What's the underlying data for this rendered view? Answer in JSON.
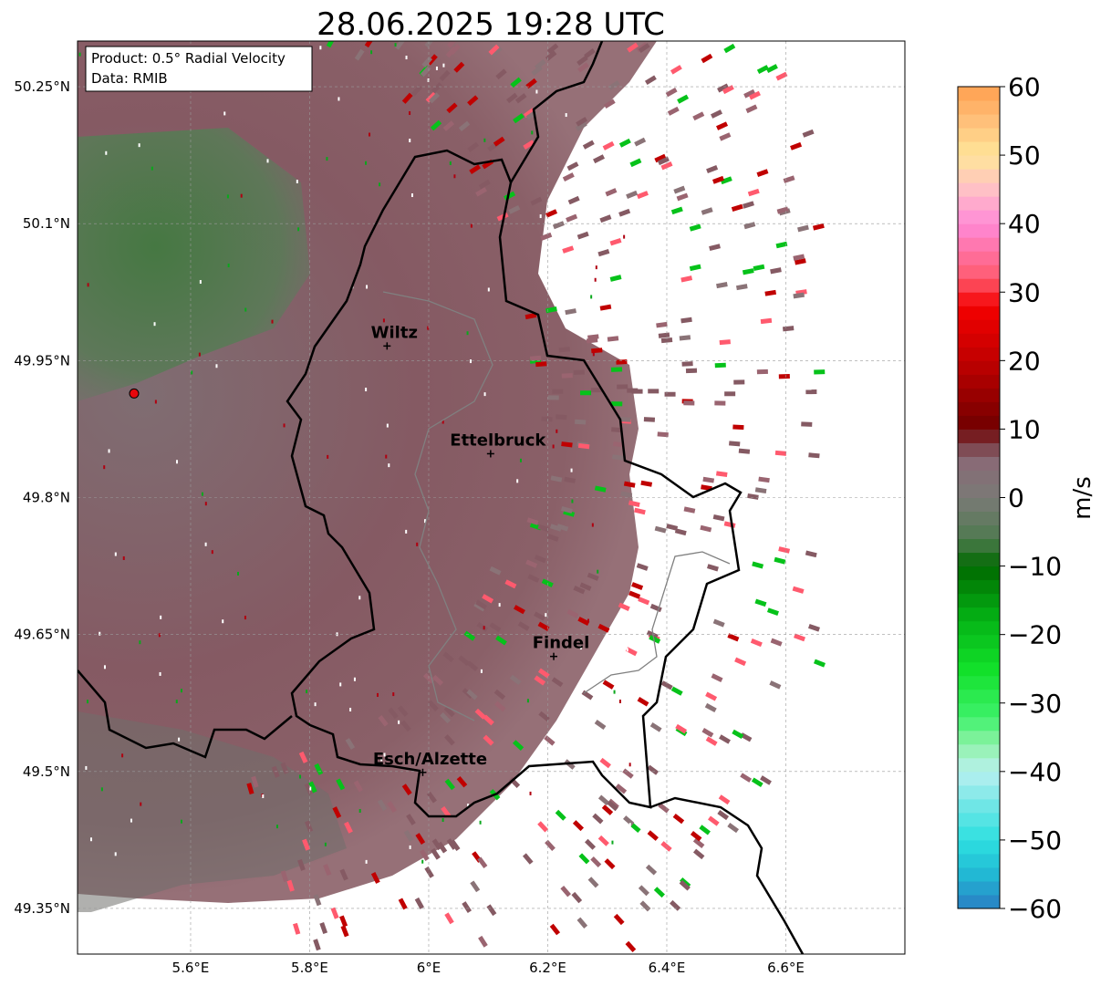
{
  "title": "28.06.2025 19:28 UTC",
  "info_box": {
    "product": "Product: 0.5° Radial Velocity",
    "data": "Data: RMIB"
  },
  "map": {
    "lon_range": [
      5.41,
      6.8
    ],
    "lat_range": [
      49.3,
      50.3
    ],
    "x_ticks": [
      {
        "value": 5.6,
        "label": "5.6°E"
      },
      {
        "value": 5.8,
        "label": "5.8°E"
      },
      {
        "value": 6.0,
        "label": "6°E"
      },
      {
        "value": 6.2,
        "label": "6.2°E"
      },
      {
        "value": 6.4,
        "label": "6.4°E"
      },
      {
        "value": 6.6,
        "label": "6.6°E"
      }
    ],
    "y_ticks": [
      {
        "value": 50.25,
        "label": "50.25°N"
      },
      {
        "value": 50.1,
        "label": "50.1°N"
      },
      {
        "value": 49.95,
        "label": "49.95°N"
      },
      {
        "value": 49.8,
        "label": "49.8°N"
      },
      {
        "value": 49.65,
        "label": "49.65°N"
      },
      {
        "value": 49.5,
        "label": "49.5°N"
      },
      {
        "value": 49.35,
        "label": "49.35°N"
      }
    ],
    "radar_site": {
      "lon": 5.505,
      "lat": 49.914,
      "color": "#e8070d"
    },
    "cities": [
      {
        "name": "Wiltz",
        "lon": 5.93,
        "lat": 49.966
      },
      {
        "name": "Ettelbruck",
        "lon": 6.104,
        "lat": 49.848
      },
      {
        "name": "Findel",
        "lon": 6.21,
        "lat": 49.626
      },
      {
        "name": "Esch/Alzette",
        "lon": 5.99,
        "lat": 49.499
      }
    ],
    "grid": true
  },
  "colorbar": {
    "label": "m/s",
    "range": [
      -60,
      60
    ],
    "tick_labels": [
      "60",
      "50",
      "40",
      "30",
      "20",
      "10",
      "0",
      "−10",
      "−20",
      "−30",
      "−40",
      "−50",
      "−60"
    ],
    "stops": [
      {
        "v": -60,
        "color": "#2a7fc4"
      },
      {
        "v": -55,
        "color": "#22b8d4"
      },
      {
        "v": -50,
        "color": "#2de0e0"
      },
      {
        "v": -45,
        "color": "#6fe6e6"
      },
      {
        "v": -40,
        "color": "#b9f0f0"
      },
      {
        "v": -36,
        "color": "#8ff2a8"
      },
      {
        "v": -32,
        "color": "#3df26a"
      },
      {
        "v": -25,
        "color": "#12e02a"
      },
      {
        "v": -18,
        "color": "#05b516"
      },
      {
        "v": -10,
        "color": "#006a00"
      },
      {
        "v": -6,
        "color": "#4f7a4f"
      },
      {
        "v": 0,
        "color": "#7a7a76"
      },
      {
        "v": 5,
        "color": "#886b76"
      },
      {
        "v": 8,
        "color": "#7b3c44"
      },
      {
        "v": 10,
        "color": "#700000"
      },
      {
        "v": 20,
        "color": "#c00000"
      },
      {
        "v": 28,
        "color": "#f40000"
      },
      {
        "v": 32,
        "color": "#ff5a6e"
      },
      {
        "v": 40,
        "color": "#ff8ad8"
      },
      {
        "v": 45,
        "color": "#ffc0c6"
      },
      {
        "v": 50,
        "color": "#ffe699"
      },
      {
        "v": 55,
        "color": "#ffc07a"
      },
      {
        "v": 60,
        "color": "#ffa050"
      }
    ]
  },
  "colors": {
    "velocity_main": "#855a63",
    "velocity_grey": "#8a7377",
    "velocity_green": "#5f7a5c",
    "velocity_darkgreen": "#3f7a3e",
    "border": "#000000",
    "river": "#808080"
  }
}
